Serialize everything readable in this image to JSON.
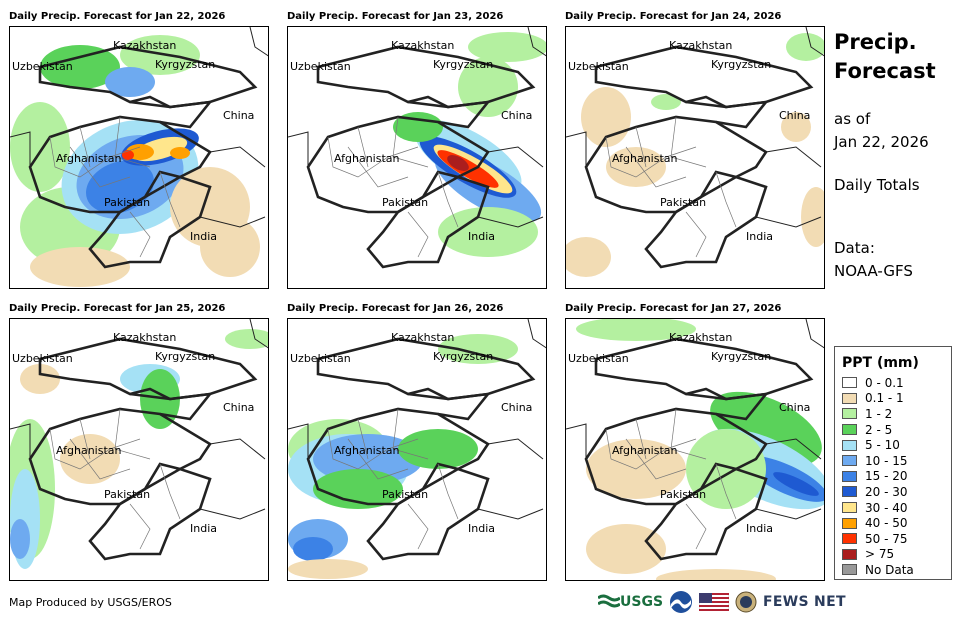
{
  "panels": [
    {
      "title": "Daily Precip. Forecast for Jan 22, 2026"
    },
    {
      "title": "Daily Precip. Forecast for Jan 23, 2026"
    },
    {
      "title": "Daily Precip. Forecast for Jan 24, 2026"
    },
    {
      "title": "Daily Precip. Forecast for Jan 25, 2026"
    },
    {
      "title": "Daily Precip. Forecast for Jan 26, 2026"
    },
    {
      "title": "Daily Precip. Forecast for Jan 27, 2026"
    }
  ],
  "place_labels": {
    "kazakhstan": "Kazakhstan",
    "uzbekistan": "Uzbekistan",
    "kyrgyzstan": "Kyrgyzstan",
    "china": "China",
    "afghanistan": "Afghanistan",
    "pakistan": "Pakistan",
    "india": "India"
  },
  "side": {
    "title_line1": "Precip.",
    "title_line2": "Forecast",
    "asof_line1": "as of",
    "asof_line2": "Jan 22, 2026",
    "totals": "Daily Totals",
    "data_line1": "Data:",
    "data_line2": "NOAA-GFS"
  },
  "legend": {
    "title": "PPT (mm)",
    "items": [
      {
        "label": "0 - 0.1",
        "color": "#ffffff"
      },
      {
        "label": "0.1 - 1",
        "color": "#f2dcb4"
      },
      {
        "label": "1 - 2",
        "color": "#b4f0a0"
      },
      {
        "label": "2 - 5",
        "color": "#5ad25a"
      },
      {
        "label": "5 - 10",
        "color": "#a5e1f5"
      },
      {
        "label": "10 - 15",
        "color": "#6eaaf0"
      },
      {
        "label": "15 - 20",
        "color": "#3c82e6"
      },
      {
        "label": "20 - 30",
        "color": "#1e5ad2"
      },
      {
        "label": "30 - 40",
        "color": "#ffe68c"
      },
      {
        "label": "40 - 50",
        "color": "#ffa000"
      },
      {
        "label": "50 - 75",
        "color": "#ff3200"
      },
      {
        "label": "> 75",
        "color": "#aa1e1e"
      },
      {
        "label": "No Data",
        "color": "#999999"
      }
    ]
  },
  "footer": {
    "credit": "Map Produced by USGS/EROS",
    "usgs_label": "USGS",
    "fews_label": "FEWS NET"
  }
}
